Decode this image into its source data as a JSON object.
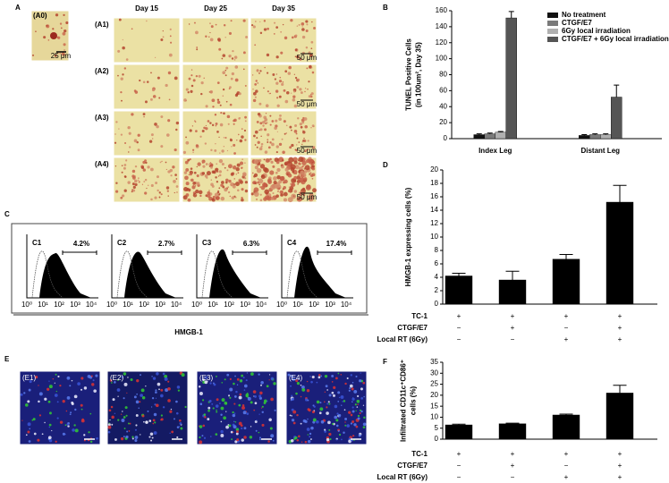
{
  "panel_labels": [
    "A",
    "B",
    "C",
    "D",
    "E",
    "F"
  ],
  "panel_a": {
    "inset_label": "(A0)",
    "inset_scale": "25 μm",
    "days": [
      "Day 15",
      "Day 25",
      "Day 35"
    ],
    "rows": [
      "(A1)",
      "(A2)",
      "(A3)",
      "(A4)"
    ],
    "scale": "50 μm"
  },
  "panel_c": {
    "histograms": [
      {
        "label": "C1",
        "percent": "4.2%"
      },
      {
        "label": "C2",
        "percent": "2.7%"
      },
      {
        "label": "C3",
        "percent": "6.3%"
      },
      {
        "label": "C4",
        "percent": "17.4%"
      }
    ],
    "x_ticks": [
      "10⁰",
      "10¹",
      "10²",
      "10³",
      "10⁴"
    ],
    "x_label": "HMGB-1"
  },
  "panel_e": {
    "images": [
      "(E1)",
      "(E2)",
      "(E3)",
      "(E4)"
    ]
  },
  "chart_data": [
    {
      "type": "bar",
      "y_label": [
        "TUNEL Positive Cells",
        "(in 100um², Day 35)"
      ],
      "categories": [
        "Index Leg",
        "Distant Leg"
      ],
      "series": [
        {
          "name": "No treatment",
          "color": "#111111",
          "values": [
            5,
            4
          ],
          "errors": [
            1,
            1
          ]
        },
        {
          "name": "CTGF/E7",
          "color": "#7a7a7a",
          "values": [
            6,
            5
          ],
          "errors": [
            1,
            1
          ]
        },
        {
          "name": "6Gy local irradiation",
          "color": "#b0b0b0",
          "values": [
            8,
            5
          ],
          "errors": [
            1,
            1
          ]
        },
        {
          "name": "CTGF/E7 + 6Gy local irradiation",
          "color": "#555555",
          "values": [
            151,
            52
          ],
          "errors": [
            8,
            15
          ]
        }
      ],
      "ylim": [
        0,
        160
      ],
      "yticks": [
        0,
        20,
        40,
        60,
        80,
        100,
        120,
        140,
        160
      ],
      "legend": "upper right"
    },
    {
      "type": "bar",
      "y_label": [
        "HMGB-1 expressing cells (%)"
      ],
      "values": [
        4.2,
        3.6,
        6.7,
        15.2
      ],
      "errors": [
        0.4,
        1.3,
        0.7,
        2.5
      ],
      "color": "#000000",
      "ylim": [
        0,
        20
      ],
      "yticks": [
        0,
        2,
        4,
        6,
        8,
        10,
        12,
        14,
        16,
        18,
        20
      ],
      "treatments": [
        {
          "name": "TC-1",
          "signs": [
            "+",
            "+",
            "+",
            "+"
          ]
        },
        {
          "name": "CTGF/E7",
          "signs": [
            "−",
            "+",
            "−",
            "+"
          ]
        },
        {
          "name": "Local RT (6Gy)",
          "signs": [
            "−",
            "−",
            "+",
            "+"
          ]
        }
      ]
    },
    {
      "type": "bar",
      "y_label": [
        "Infiltrated CD11c⁺CD86⁺",
        "cells (%)"
      ],
      "values": [
        6.5,
        7,
        11,
        21
      ],
      "errors": [
        0.3,
        0.3,
        0.4,
        3.5
      ],
      "color": "#000000",
      "ylim": [
        0,
        35
      ],
      "yticks": [
        0,
        5,
        10,
        15,
        20,
        25,
        30,
        35
      ],
      "treatments": [
        {
          "name": "TC-1",
          "signs": [
            "+",
            "+",
            "+",
            "+"
          ]
        },
        {
          "name": "CTGF/E7",
          "signs": [
            "−",
            "+",
            "−",
            "+"
          ]
        },
        {
          "name": "Local RT (6Gy)",
          "signs": [
            "−",
            "−",
            "+",
            "+"
          ]
        }
      ]
    }
  ]
}
